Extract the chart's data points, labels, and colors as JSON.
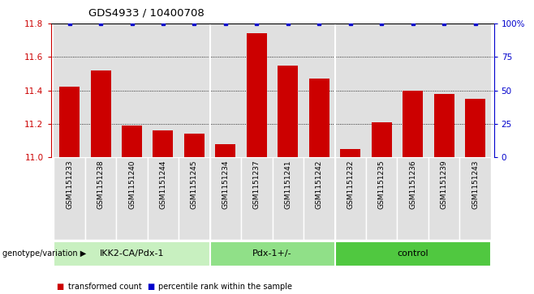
{
  "title": "GDS4933 / 10400708",
  "samples": [
    "GSM1151233",
    "GSM1151238",
    "GSM1151240",
    "GSM1151244",
    "GSM1151245",
    "GSM1151234",
    "GSM1151237",
    "GSM1151241",
    "GSM1151242",
    "GSM1151232",
    "GSM1151235",
    "GSM1151236",
    "GSM1151239",
    "GSM1151243"
  ],
  "bar_values": [
    11.42,
    11.52,
    11.19,
    11.16,
    11.14,
    11.08,
    11.74,
    11.55,
    11.47,
    11.05,
    11.21,
    11.4,
    11.38,
    11.35
  ],
  "percentile_values": [
    100,
    100,
    100,
    100,
    100,
    100,
    100,
    100,
    100,
    100,
    100,
    100,
    100,
    100
  ],
  "ylim_left": [
    11.0,
    11.8
  ],
  "ylim_right": [
    0,
    100
  ],
  "yticks_left": [
    11.0,
    11.2,
    11.4,
    11.6,
    11.8
  ],
  "yticks_right": [
    0,
    25,
    50,
    75,
    100
  ],
  "ytick_labels_right": [
    "0",
    "25",
    "50",
    "75",
    "100%"
  ],
  "grid_lines": [
    11.2,
    11.4,
    11.6
  ],
  "groups": [
    {
      "label": "IKK2-CA/Pdx-1",
      "start": 0,
      "end": 5,
      "color": "#c8f0c0"
    },
    {
      "label": "Pdx-1+/-",
      "start": 5,
      "end": 9,
      "color": "#90e088"
    },
    {
      "label": "control",
      "start": 9,
      "end": 14,
      "color": "#50c840"
    }
  ],
  "bar_color": "#cc0000",
  "dot_color": "#0000cc",
  "col_bg_color": "#e0e0e0",
  "group_label": "genotype/variation",
  "legend_labels": [
    "transformed count",
    "percentile rank within the sample"
  ],
  "legend_colors": [
    "#cc0000",
    "#0000cc"
  ]
}
